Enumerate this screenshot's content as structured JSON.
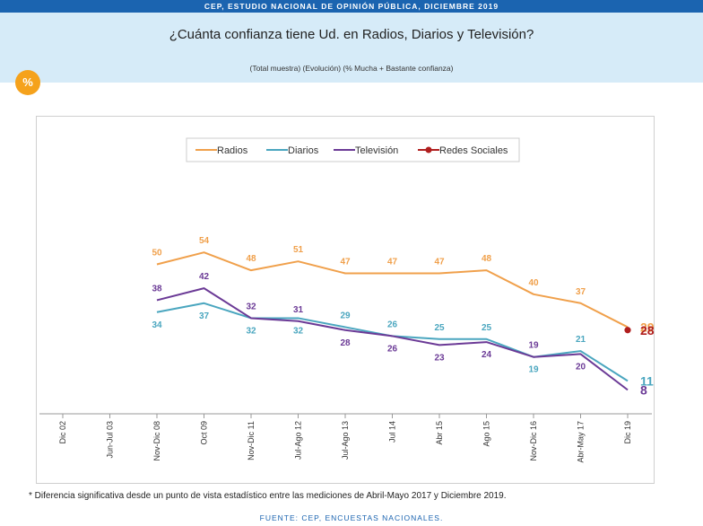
{
  "header": {
    "top_banner": "CEP, ESTUDIO NACIONAL DE OPINIÓN PÚBLICA, DICIEMBRE 2019",
    "title": "¿Cuánta confianza tiene Ud. en Radios, Diarios y Televisión?",
    "subtitle": "(Total muestra) (Evolución) (% Mucha + Bastante confianza)",
    "badge": "%"
  },
  "footnote": "* Diferencia significativa desde un punto de vista estadístico entre las mediciones de Abril-Mayo 2017 y Diciembre 2019.",
  "source": "FUENTE: CEP, ENCUESTAS NACIONALES.",
  "chart_data": {
    "type": "line",
    "categories": [
      "Dic 02",
      "Jun-Jul 03",
      "Nov-Dic 08",
      "Oct 09",
      "Nov-Dic 11",
      "Jul-Ago 12",
      "Jul-Ago 13",
      "Jul 14",
      "Abr 15",
      "Ago 15",
      "Nov-Dic 16",
      "Abr-May 17",
      "Dic 19"
    ],
    "series": [
      {
        "name": "Radios",
        "color": "#f0a04b",
        "values": [
          null,
          null,
          50,
          54,
          48,
          51,
          47,
          47,
          47,
          48,
          40,
          37,
          29
        ]
      },
      {
        "name": "Diarios",
        "color": "#4aa6bf",
        "values": [
          null,
          null,
          34,
          37,
          32,
          32,
          29,
          26,
          25,
          25,
          19,
          21,
          11
        ]
      },
      {
        "name": "Televisión",
        "color": "#6b3a96",
        "values": [
          null,
          null,
          38,
          42,
          32,
          31,
          28,
          26,
          23,
          24,
          19,
          20,
          8
        ]
      },
      {
        "name": "Redes Sociales",
        "color": "#b01e1e",
        "values": [
          null,
          null,
          null,
          null,
          null,
          null,
          null,
          null,
          null,
          null,
          null,
          null,
          28
        ]
      }
    ],
    "ylim": [
      0,
      100
    ],
    "legend_position": "top-center"
  }
}
